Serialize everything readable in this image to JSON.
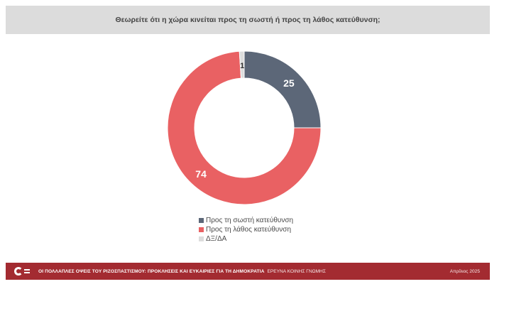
{
  "title": "Θεωρείτε ότι η χώρα κινείται προς τη σωστή ή προς τη λάθος κατεύθυνση;",
  "chart_data": {
    "type": "pie",
    "donut": true,
    "categories": [
      "Προς τη σωστή κατεύθυνση",
      "Προς τη λάθος κατεύθυνση",
      "ΔΞ/ΔΑ"
    ],
    "values": [
      25,
      74,
      1
    ],
    "colors": [
      "#5c6778",
      "#e96163",
      "#dcdcdc"
    ],
    "data_labels": [
      "25",
      "74",
      "1"
    ],
    "legend_position": "bottom"
  },
  "legend": {
    "items": [
      {
        "label": "Προς τη σωστή κατεύθυνση",
        "color": "#5c6778"
      },
      {
        "label": "Προς τη λάθος κατεύθυνση",
        "color": "#e96163"
      },
      {
        "label": "ΔΞ/ΔΑ",
        "color": "#dcdcdc"
      }
    ]
  },
  "footer": {
    "title": "ΟΙ ΠΟΛΛΑΠΛΕΣ ΟΨΕΙΣ ΤΟΥ ΡΙΖΟΣΠΑΣΤΙΣΜΟΥ: ΠΡΟΚΛΗΣΕΙΣ ΚΑΙ ΕΥΚΑΙΡΙΕΣ ΓΙΑ ΤΗ ΔΗΜΟΚΡΑΤΙΑ",
    "subtitle": "ΕΡΕΥΝΑ ΚΟΙΝΗΣ ΓΝΩΜΗΣ",
    "date": "Απρίλιος 2025",
    "bg_color": "#a32b31"
  }
}
